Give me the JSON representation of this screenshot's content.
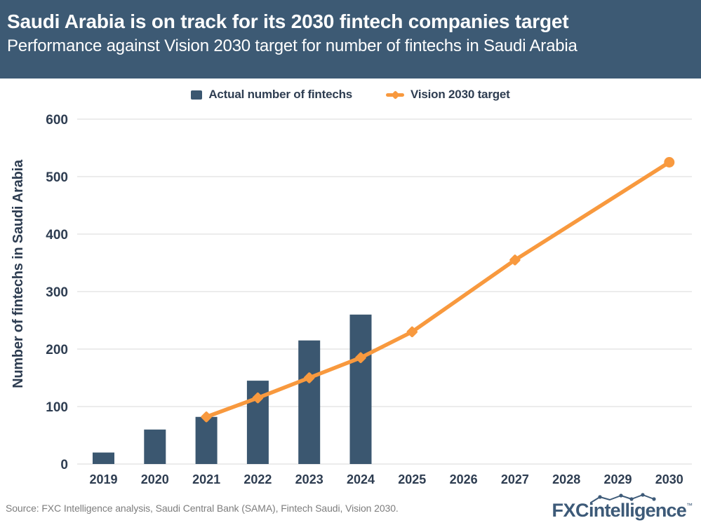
{
  "header": {
    "title": "Saudi Arabia is on track for its 2030 fintech companies target",
    "subtitle": "Performance against Vision 2030 target for number of fintechs in Saudi Arabia"
  },
  "legend": {
    "bars_label": "Actual number of fintechs",
    "line_label": "Vision 2030 target"
  },
  "chart_data": {
    "type": "bar+line",
    "title": "Performance against Vision 2030 target for number of fintechs in Saudi Arabia",
    "categories": [
      "2019",
      "2020",
      "2021",
      "2022",
      "2023",
      "2024",
      "2025",
      "2026",
      "2027",
      "2028",
      "2029",
      "2030"
    ],
    "ylabel": "Number of fintechs in Saudi Arabia",
    "xlabel": "",
    "ylim": [
      0,
      600
    ],
    "yticks": [
      0,
      100,
      200,
      300,
      400,
      500,
      600
    ],
    "grid": true,
    "legend_position": "top",
    "series": [
      {
        "name": "Actual number of fintechs",
        "type": "bar",
        "color": "#3B5770",
        "values": [
          20,
          60,
          82,
          145,
          215,
          260,
          null,
          null,
          null,
          null,
          null,
          null
        ]
      },
      {
        "name": "Vision 2030 target",
        "type": "line",
        "color": "#F8993E",
        "points": [
          {
            "x": "2021",
            "v": 82
          },
          {
            "x": "2022",
            "v": 115
          },
          {
            "x": "2023",
            "v": 150
          },
          {
            "x": "2024",
            "v": 185
          },
          {
            "x": "2025",
            "v": 230
          },
          {
            "x": "2027",
            "v": 355
          },
          {
            "x": "2030",
            "v": 525,
            "marker": "circle"
          }
        ]
      }
    ]
  },
  "colors": {
    "header_bg": "#3D5A74",
    "bar": "#3B5770",
    "line": "#F8993E",
    "text_navy": "#2E3D51",
    "grid": "#E5E5E5",
    "source_gray": "#7D7D7D",
    "logo_navy": "#3D5A78"
  },
  "footer": {
    "source": "Source: FXC Intelligence analysis, Saudi Central Bank (SAMA), Fintech Saudi, Vision 2030.",
    "logo_fxc": "FXC",
    "logo_intelligence": "intelligence",
    "logo_tm": "™"
  }
}
